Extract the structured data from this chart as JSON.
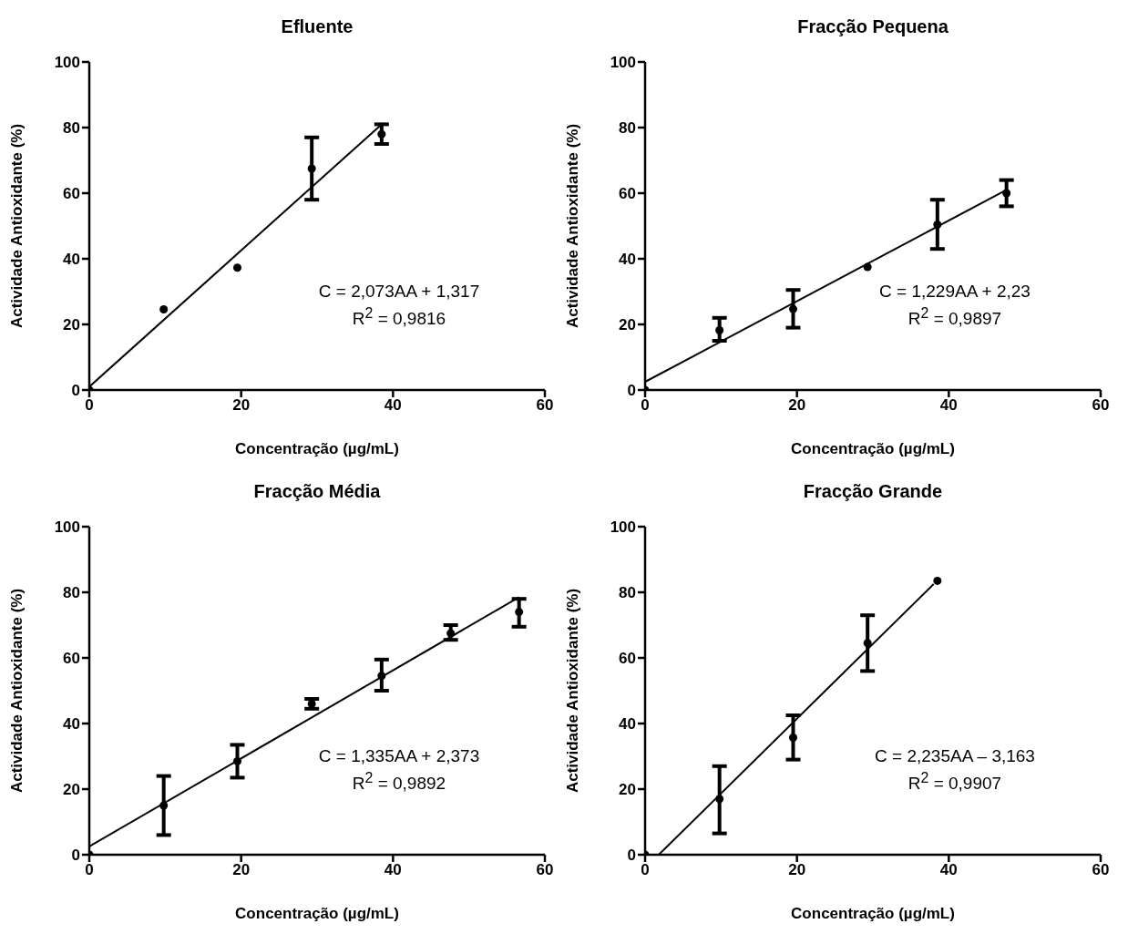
{
  "chart_data": [
    {
      "type": "scatter",
      "title": "Efluente",
      "xlabel": "Concentração (µg/mL)",
      "ylabel": "Actividade Antioxidante (%)",
      "xlim": [
        0,
        60
      ],
      "xticks": [
        0,
        20,
        40,
        60
      ],
      "ylim": [
        0,
        100
      ],
      "yticks": [
        0,
        20,
        40,
        60,
        80,
        100
      ],
      "grid": false,
      "annotations": [
        "C = 2,073AA + 1,317",
        "R$^{2}$ = 0,9816"
      ],
      "series": [
        {
          "marker": "circle",
          "color": "#000000",
          "x": [
            0,
            9.8,
            19.5,
            29.3,
            38.5
          ],
          "values": [
            0,
            24.6,
            37.3,
            67.5,
            78
          ],
          "errors": [
            null,
            null,
            null,
            [
              58,
              77
            ],
            [
              75,
              81
            ]
          ]
        },
        {
          "type": "line",
          "marker": "none",
          "color": "#000000",
          "x": [
            0,
            38.5
          ],
          "values": [
            1,
            81
          ]
        }
      ]
    },
    {
      "type": "scatter",
      "title": "Fracção Pequena",
      "xlabel": "Concentração (µg/mL)",
      "ylabel": "Actividade Antioxidante (%)",
      "xlim": [
        0,
        60
      ],
      "xticks": [
        0,
        20,
        40,
        60
      ],
      "ylim": [
        0,
        100
      ],
      "yticks": [
        0,
        20,
        40,
        60,
        80,
        100
      ],
      "grid": false,
      "annotations": [
        "C = 1,229AA + 2,23",
        "R$^{2}$ = 0,9897"
      ],
      "series": [
        {
          "marker": "circle",
          "color": "#000000",
          "x": [
            0,
            9.8,
            19.5,
            29.3,
            38.5,
            47.6
          ],
          "values": [
            0,
            18.2,
            24.7,
            37.5,
            50.4,
            60
          ],
          "errors": [
            null,
            [
              15,
              22
            ],
            [
              19,
              30.5
            ],
            null,
            [
              43,
              58
            ],
            [
              56,
              64
            ]
          ]
        },
        {
          "type": "line",
          "marker": "none",
          "color": "#000000",
          "x": [
            0,
            47.6
          ],
          "values": [
            2.5,
            61
          ]
        }
      ]
    },
    {
      "type": "scatter",
      "title": "Fracção Média",
      "xlabel": "Concentração (µg/mL)",
      "ylabel": "Actividade Antioxidante (%)",
      "xlim": [
        0,
        60
      ],
      "xticks": [
        0,
        20,
        40,
        60
      ],
      "ylim": [
        0,
        100
      ],
      "yticks": [
        0,
        20,
        40,
        60,
        80,
        100
      ],
      "grid": false,
      "annotations": [
        "C = 1,335AA + 2,373",
        "R$^{2}$ = 0,9892"
      ],
      "series": [
        {
          "marker": "circle",
          "color": "#000000",
          "x": [
            0,
            9.8,
            19.5,
            29.3,
            38.5,
            47.6,
            56.6
          ],
          "values": [
            0,
            15,
            28.5,
            46,
            54.5,
            67.5,
            74
          ],
          "errors": [
            null,
            [
              6,
              24
            ],
            [
              23.5,
              33.5
            ],
            [
              44.5,
              47.5
            ],
            [
              50,
              59.5
            ],
            [
              65.5,
              70
            ],
            [
              69.5,
              78
            ]
          ]
        },
        {
          "type": "line",
          "marker": "none",
          "color": "#000000",
          "x": [
            0,
            56.6
          ],
          "values": [
            2.5,
            78.5
          ]
        }
      ]
    },
    {
      "type": "scatter",
      "title": "Fracção Grande",
      "xlabel": "Concentração (µg/mL)",
      "ylabel": "Actividade Antioxidante (%)",
      "xlim": [
        0,
        60
      ],
      "xticks": [
        0,
        20,
        40,
        60
      ],
      "ylim": [
        0,
        100
      ],
      "yticks": [
        0,
        20,
        40,
        60,
        80,
        100
      ],
      "grid": false,
      "annotations": [
        "C = 2,235AA – 3,163",
        "R$^{2}$ = 0,9907"
      ],
      "series": [
        {
          "marker": "circle",
          "color": "#000000",
          "x": [
            0,
            9.8,
            19.5,
            29.3,
            38.5
          ],
          "values": [
            0,
            17,
            35.7,
            64.5,
            83.5
          ],
          "errors": [
            null,
            [
              6.5,
              27
            ],
            [
              29,
              42.5
            ],
            [
              56,
              73
            ],
            null
          ]
        },
        {
          "type": "line",
          "marker": "none",
          "color": "#000000",
          "x": [
            1.8,
            38
          ],
          "values": [
            0,
            82.5
          ]
        }
      ]
    }
  ]
}
